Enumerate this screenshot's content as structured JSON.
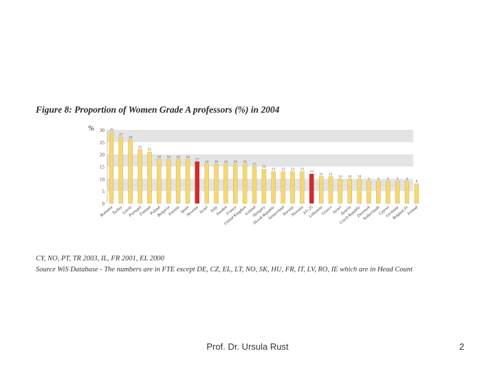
{
  "chart_data": {
    "type": "bar",
    "title": "Figure 8: Proportion of Women Grade A professors (%) in 2004",
    "ylabel": "%",
    "ylim": [
      0,
      30
    ],
    "yticks": [
      0,
      5,
      10,
      15,
      20,
      25,
      30
    ],
    "categories": [
      "Romania",
      "Turkey",
      "Latvia",
      "Portugal",
      "Finland",
      "Poland",
      "Bulgaria",
      "Estonia",
      "Spain",
      "Slovenia",
      "Israel",
      "Italy",
      "Sweden",
      "France",
      "United Kingdom",
      "Iceland",
      "Hungary",
      "Slovak Republic",
      "Switzerland",
      "Norway",
      "Slovenia",
      "EU-25",
      "Lithuania",
      "Greece",
      "Israel",
      "Austria",
      "Czech Republic",
      "Denmark",
      "Netherlands",
      "Cyprus",
      "Germany",
      "Belgium Fr",
      "Ireland"
    ],
    "values": [
      29,
      27,
      26,
      22,
      21,
      18,
      18,
      18,
      18,
      17,
      16,
      16,
      16,
      16,
      16,
      15,
      14,
      13,
      13,
      13,
      13,
      12,
      11,
      11,
      10,
      10,
      10,
      9,
      9,
      9,
      9,
      9,
      8
    ],
    "highlighted": [
      9,
      21
    ],
    "colors": {
      "bar": "#f5d876",
      "bar_edge": "#c9a43a",
      "highlight": "#d42a2a",
      "band": "#e4e4e4"
    }
  },
  "notes": {
    "line1": "CY, NO, PT, TR 2003, IL, FR 2001, EL 2000",
    "line2": "Source WiS Database - The numbers are in FTE except DE, CZ, EL, LT, NO, SK, HU, FR, IT, LV, RO, IE which are in Head Count"
  },
  "footer": {
    "author": "Prof. Dr. Ursula Rust",
    "page": "2"
  }
}
